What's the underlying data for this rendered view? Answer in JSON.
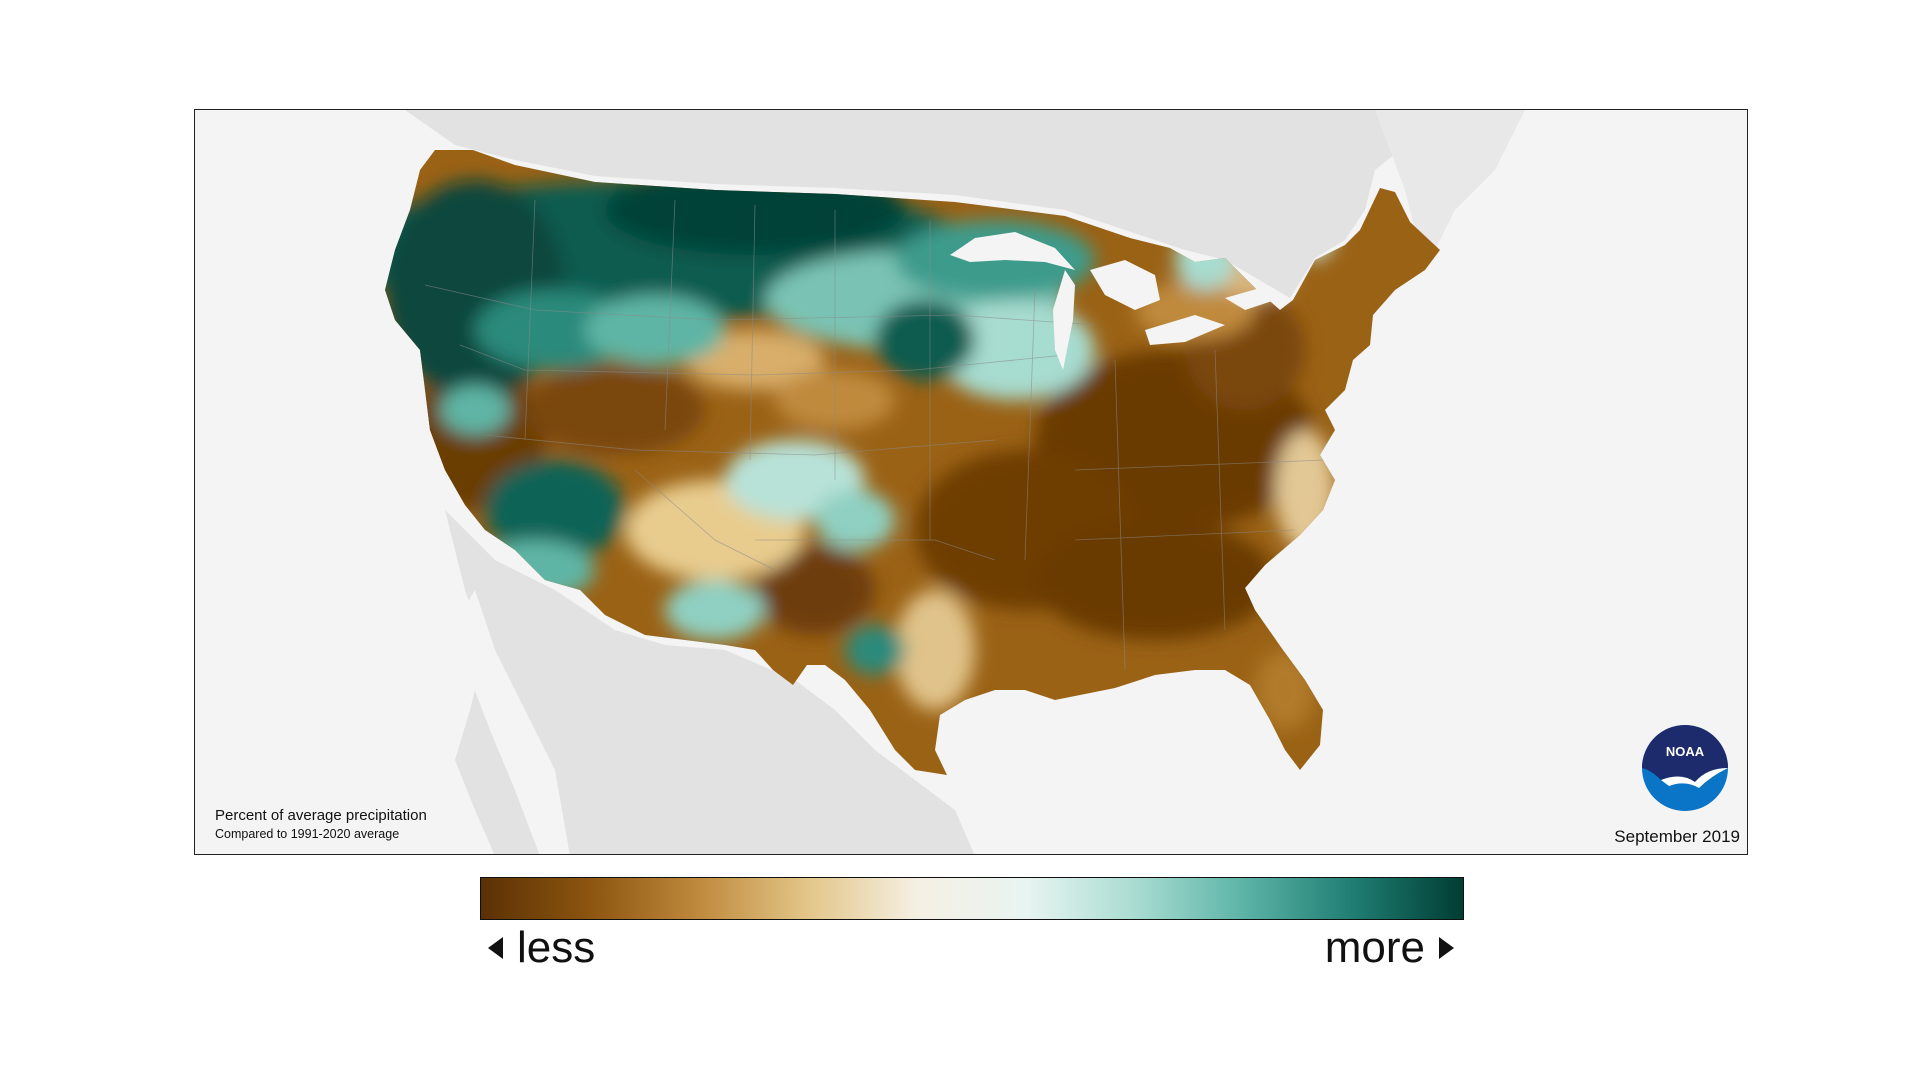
{
  "map": {
    "title": "Percent of average precipitation",
    "subtitle": "Compared to 1991-2020 average",
    "date": "September 2019",
    "logo_text": "NOAA"
  },
  "legend": {
    "left_label": "less",
    "right_label": "more",
    "colors": [
      "#5b3104",
      "#8c5510",
      "#bf8a3d",
      "#e3c689",
      "#f5f0e4",
      "#e8f4f1",
      "#a9dcd1",
      "#5bb3a6",
      "#1f7d72",
      "#003d33"
    ]
  },
  "colors": {
    "land_background": "#e2e2e2",
    "ocean_background": "#f4f4f4",
    "dry": "#8c5510",
    "wet": "#005246",
    "noaa_blue": "#0a74c7",
    "noaa_navy": "#1d2a6b"
  }
}
